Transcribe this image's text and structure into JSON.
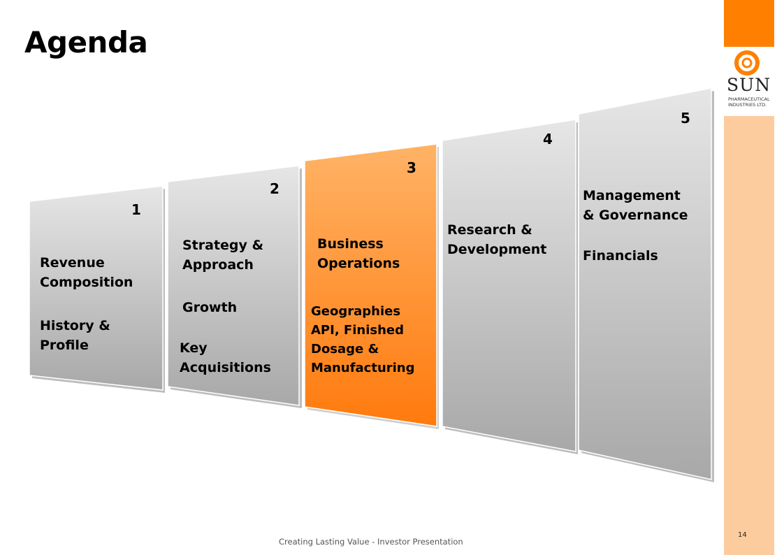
{
  "slide": {
    "title": "Agenda",
    "footer": "Creating Lasting Value - Investor Presentation",
    "page_number": "14"
  },
  "logo": {
    "icon": "sun-pharma-ring-icon",
    "name": "SUN",
    "subtitle_line1": "PHARMACEUTICAL",
    "subtitle_line2": "INDUSTRIES LTD."
  },
  "colors": {
    "accent": "#ff8000",
    "side_strip": "#fdcc9e",
    "panel_gray_top": "#e4e4e4",
    "panel_gray_bottom": "#a8a8a8",
    "panel_orange_top": "#ffb366",
    "panel_orange_bottom": "#ff7a0d"
  },
  "panels": [
    {
      "number": "1",
      "active": false,
      "line1": "Revenue",
      "line2": "Composition",
      "line3": "History &",
      "line4": "Profile"
    },
    {
      "number": "2",
      "active": false,
      "line1": "Strategy &",
      "line2": "Approach",
      "line3": "Growth",
      "line4": "Key",
      "line5": "Acquisitions"
    },
    {
      "number": "3",
      "active": true,
      "line1": "Business",
      "line2": "Operations",
      "line3": "Geographies",
      "line4": "API, Finished",
      "line5": "Dosage &",
      "line6": "Manufacturing"
    },
    {
      "number": "4",
      "active": false,
      "line1": "Research &",
      "line2": "Development"
    },
    {
      "number": "5",
      "active": false,
      "line1": "Management",
      "line2": "& Governance",
      "line3": "Financials"
    }
  ]
}
